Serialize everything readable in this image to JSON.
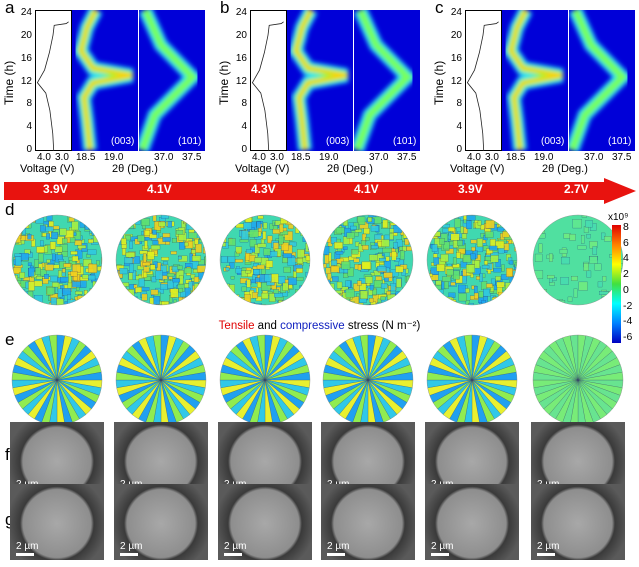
{
  "panels": [
    {
      "label": "a",
      "y_axis": "Time (h)",
      "y_ticks": [
        "0",
        "4",
        "8",
        "12",
        "16",
        "20",
        "24"
      ],
      "voltage_axis": "Voltage (V)",
      "voltage_ticks": [
        "4.0",
        "3.0"
      ],
      "theta_axis": "2θ (Deg.)",
      "theta_ticks_003": [
        "18.5",
        "19.0"
      ],
      "theta_ticks_101": [
        "37.0",
        "37.5"
      ],
      "peak_labels": [
        "(003)",
        "(101)"
      ]
    },
    {
      "label": "b",
      "y_axis": "Time (h)",
      "y_ticks": [
        "0",
        "4",
        "8",
        "12",
        "16",
        "20",
        "24"
      ],
      "voltage_axis": "Voltage (V)",
      "voltage_ticks": [
        "4.0",
        "3.0"
      ],
      "theta_axis": "2θ (Deg.)",
      "theta_ticks_003": [
        "18.5",
        "19.0"
      ],
      "theta_ticks_101": [
        "37.0",
        "37.5"
      ],
      "peak_labels": [
        "(003)",
        "(101)"
      ]
    },
    {
      "label": "c",
      "y_axis": "Time (h)",
      "y_ticks": [
        "0",
        "4",
        "8",
        "12",
        "16",
        "20",
        "24"
      ],
      "voltage_axis": "Voltage (V)",
      "voltage_ticks": [
        "4.0",
        "3.0"
      ],
      "theta_axis": "2θ (Deg.)",
      "theta_ticks_003": [
        "18.5",
        "19.0"
      ],
      "theta_ticks_101": [
        "37.0",
        "37.5"
      ],
      "peak_labels": [
        "(003)",
        "(101)"
      ]
    }
  ],
  "voltages": [
    "3.9V",
    "4.1V",
    "4.3V",
    "4.1V",
    "3.9V",
    "2.7V"
  ],
  "row_labels": {
    "d": "d",
    "e": "e",
    "f": "f",
    "g": "g"
  },
  "stress_caption": {
    "tensile": "Tensile",
    "and": " and ",
    "compressive": "compressive",
    "rest": " stress (N m⁻²)"
  },
  "colorbar": {
    "multiplier": "x10⁹",
    "ticks": [
      "8",
      "6",
      "4",
      "2",
      "0",
      "-2",
      "-4",
      "-6"
    ]
  },
  "scale_bar": "2 µm",
  "colors": {
    "arrow": "#e8130f",
    "tensile": "#e00000",
    "compressive": "#1020c0",
    "heat_bg": "#0000d8"
  }
}
